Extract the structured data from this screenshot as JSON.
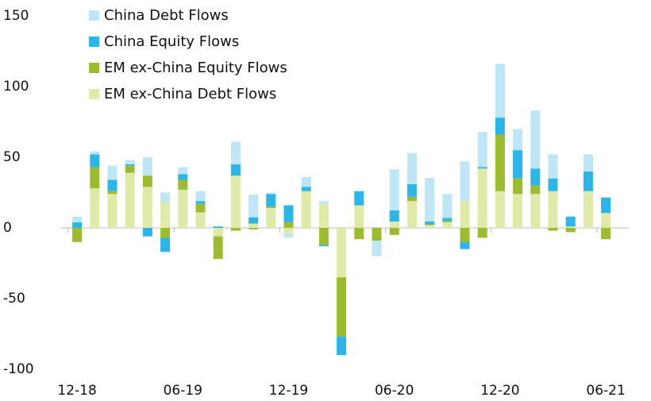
{
  "chart_data": {
    "type": "stacked_bar",
    "categories": [
      "12-18",
      null,
      null,
      null,
      null,
      null,
      "06-19",
      null,
      null,
      null,
      null,
      null,
      "12-19",
      null,
      null,
      null,
      null,
      null,
      "06-20",
      null,
      null,
      null,
      null,
      null,
      "12-20",
      null,
      null,
      null,
      null,
      null,
      "06-21"
    ],
    "series": [
      {
        "name": "China Debt Flows",
        "color": "#bfe6f6",
        "values": [
          4,
          2,
          10,
          3,
          13,
          7,
          5,
          7,
          0,
          16,
          16,
          1,
          -3,
          7,
          2,
          0,
          0,
          -11,
          29,
          22,
          31,
          17,
          28,
          25,
          38,
          15,
          41,
          17,
          0,
          12,
          0
        ]
      },
      {
        "name": "China Equity Flows",
        "color": "#2cb5e8",
        "values": [
          4,
          9,
          8,
          1,
          -6,
          -10,
          4,
          2,
          1,
          8,
          4.5,
          9,
          12,
          3,
          -1,
          -13,
          10,
          0,
          8,
          9,
          2,
          2,
          -5,
          1,
          12,
          20,
          12,
          9,
          7,
          14,
          11
        ]
      },
      {
        "name": "EM ex-China Equity Flows",
        "color": "#9dbb2e",
        "values": [
          -10,
          15,
          2,
          5,
          8,
          -7,
          7,
          6,
          -16,
          -2,
          -1,
          1,
          4,
          0,
          -12,
          -42,
          -8,
          -9,
          -5,
          3,
          0.5,
          1,
          -10,
          -7,
          40,
          11,
          6,
          -2,
          -3,
          0,
          -8
        ]
      },
      {
        "name": "EM ex-China Debt Flows",
        "color": "#e0eaa8",
        "values": [
          0,
          28,
          24,
          39,
          29,
          18,
          27,
          11,
          -6,
          37,
          3,
          14,
          -4,
          26,
          17,
          -35,
          16,
          0,
          4.5,
          19,
          2,
          4,
          19,
          42,
          26,
          24,
          24,
          26,
          1,
          26,
          10.5
        ]
      }
    ],
    "ylim": [
      -100,
      150
    ],
    "yticks": [
      -100,
      -50,
      0,
      50,
      100,
      150
    ],
    "negative_tick_color": "#e3141b",
    "grid": false,
    "legend": "top-left"
  }
}
